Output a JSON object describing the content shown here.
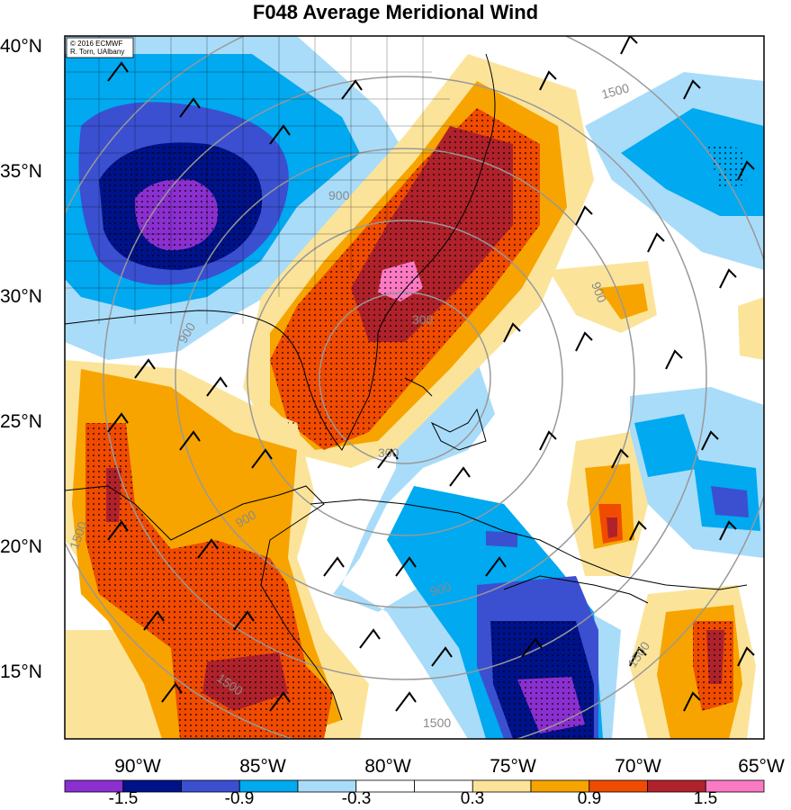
{
  "title": "F048 Average Meridional Wind",
  "credit": {
    "line1": "© 2016 ECMWF",
    "line2": "R. Torn, UAlbany"
  },
  "lat_labels": [
    "40°N",
    "35°N",
    "30°N",
    "25°N",
    "20°N",
    "15°N"
  ],
  "lon_labels": [
    "90°W",
    "85°W",
    "80°W",
    "75°W",
    "70°W",
    "65°W"
  ],
  "range_ring_labels": [
    "300",
    "300",
    "900",
    "900",
    "900",
    "900",
    "1500",
    "1500",
    "1500",
    "1500",
    "1500",
    "900"
  ],
  "colorbar": {
    "labels": [
      "-1.5",
      "-0.9",
      "-0.3",
      "0.3",
      "0.9",
      "1.5"
    ],
    "colors": [
      "#8b2fd0",
      "#00128a",
      "#3a50d0",
      "#00a9f0",
      "#a9dcf9",
      "#ffffff",
      "#ffffff",
      "#fbe49a",
      "#f7a400",
      "#f04b00",
      "#b0222b",
      "#fb7ac3"
    ]
  },
  "colors": {
    "positive_high": "#fb7ac3",
    "positive_strong": "#b0222b",
    "positive_mid": "#f04b00",
    "positive_low": "#f7a400",
    "positive_weak": "#fbe49a",
    "negative_weak": "#a9dcf9",
    "negative_low": "#00a9f0",
    "negative_mid": "#3a50d0",
    "negative_strong": "#00128a",
    "negative_high": "#8b2fd0"
  }
}
